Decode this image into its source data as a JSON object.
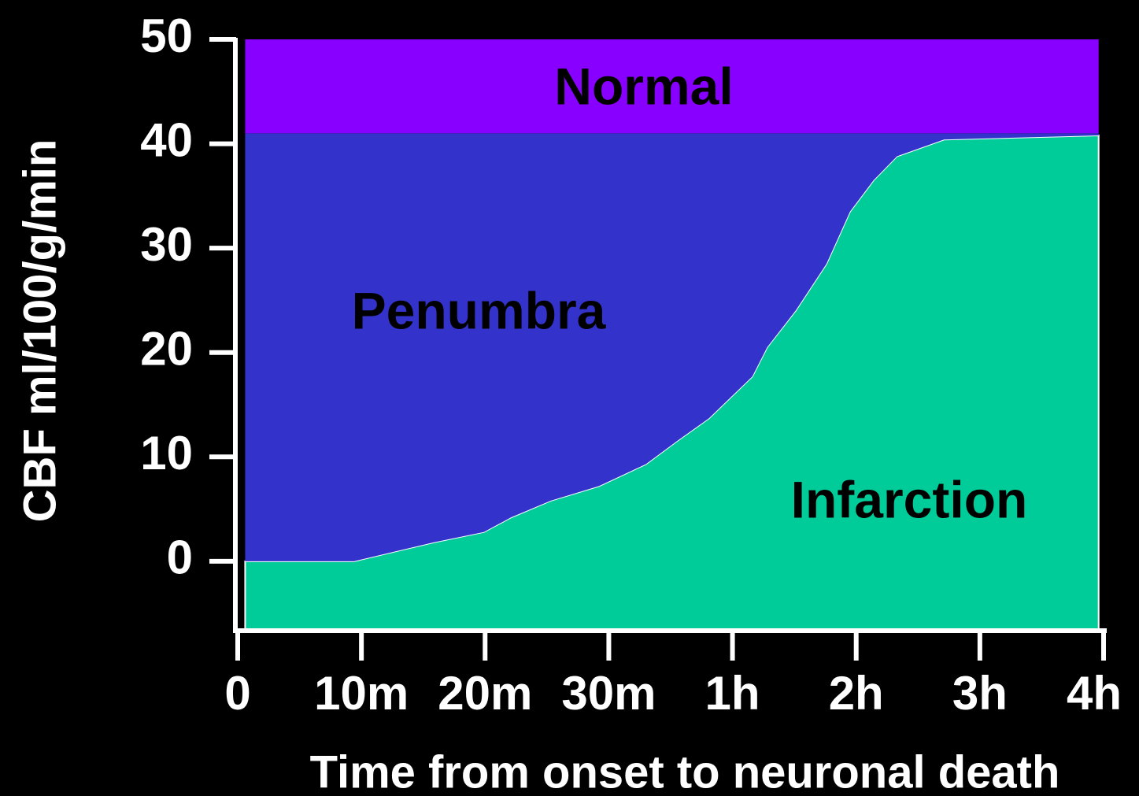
{
  "chart_data": {
    "type": "area",
    "x_label": "Time from onset to neuronal death",
    "y_label": "CBF ml/100/g/min",
    "x": [
      0.06,
      0.94,
      1.58,
      1.99,
      2.21,
      2.53,
      2.92,
      3.3,
      3.55,
      3.81,
      4.16,
      4.28,
      4.51,
      4.76,
      4.95,
      5.14,
      5.33,
      5.71,
      6.96
    ],
    "series": [
      {
        "name": "Infarction",
        "color": "#00cc99",
        "values": [
          0,
          0,
          1.8,
          2.8,
          4.2,
          5.8,
          7.2,
          9.3,
          11.5,
          13.7,
          17.7,
          20.5,
          24,
          28.5,
          33.5,
          36.5,
          38.8,
          40.4,
          40.8
        ]
      },
      {
        "name": "Penumbra",
        "color": "#3333cc",
        "values": [
          41,
          41,
          41,
          41,
          41,
          41,
          41,
          41,
          41,
          41,
          41,
          41,
          41,
          41,
          41,
          41,
          41,
          41,
          41
        ]
      },
      {
        "name": "Normal",
        "color": "#8800ff",
        "values": [
          50,
          50,
          50,
          50,
          50,
          50,
          50,
          50,
          50,
          50,
          50,
          50,
          50,
          50,
          50,
          50,
          50,
          50,
          50
        ]
      }
    ],
    "xlim": [
      0,
      7
    ],
    "xticks": [
      {
        "value": 0,
        "label": "0"
      },
      {
        "value": 1,
        "label": "10m"
      },
      {
        "value": 2,
        "label": "20m"
      },
      {
        "value": 3,
        "label": "30m"
      },
      {
        "value": 4,
        "label": "1h"
      },
      {
        "value": 5,
        "label": "2h"
      },
      {
        "value": 6,
        "label": "3h"
      },
      {
        "value": 7,
        "label": "4h"
      }
    ],
    "ylim": [
      -6.5,
      50
    ],
    "yticks": [
      0,
      10,
      20,
      30,
      40,
      50
    ]
  }
}
